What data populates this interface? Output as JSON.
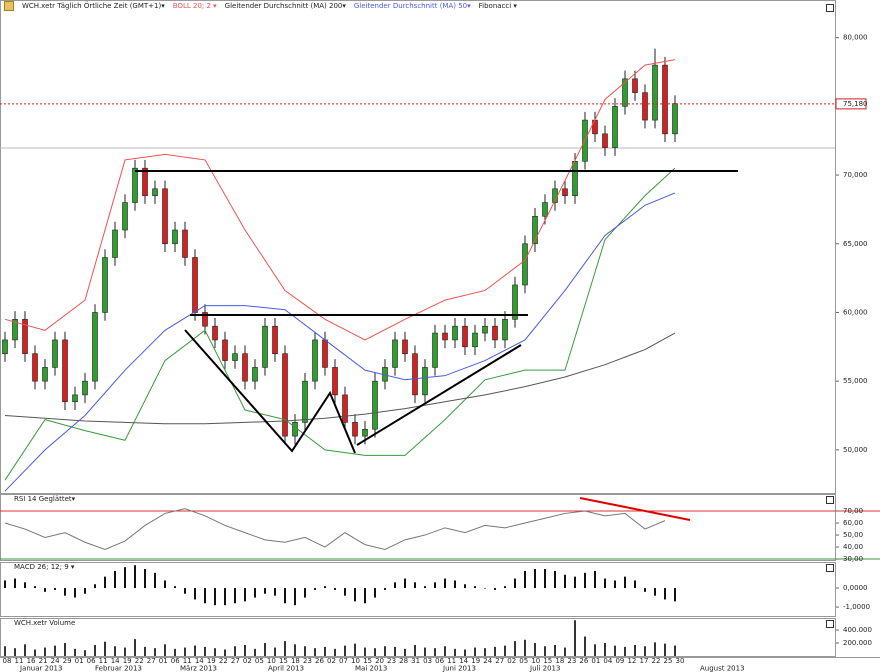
{
  "chart_data": [
    {
      "type": "candlestick",
      "title": "WCH.xetr Täglich Örtliche Zeit (GMT+1)▾",
      "up_color": "#2e9e2e",
      "down_color": "#d42020",
      "open": [
        57,
        58,
        59.5,
        57,
        55,
        56,
        58,
        53.5,
        54,
        55,
        60,
        64,
        66,
        68,
        70.5,
        68.5,
        69,
        65,
        66,
        64,
        60,
        59,
        58,
        56.5,
        57,
        55,
        56,
        59,
        57,
        51,
        52,
        55,
        58,
        56,
        54,
        52,
        51,
        51.5,
        55,
        56,
        58,
        57,
        54,
        56,
        58.5,
        58,
        59,
        57.5,
        58.5,
        59,
        58,
        59.5,
        62,
        65,
        67,
        68,
        69,
        68.5,
        71,
        74,
        73,
        72,
        75,
        77,
        76,
        74,
        78,
        73
      ],
      "high": [
        58.6,
        60.1,
        60.1,
        57.6,
        56.6,
        58.6,
        58.6,
        54.6,
        55.6,
        60.6,
        64.6,
        66.6,
        68.6,
        71.1,
        71.1,
        69.6,
        69.6,
        66.6,
        66.6,
        64.6,
        60.6,
        59.6,
        58.6,
        57.6,
        57.6,
        56.6,
        59.6,
        59.6,
        57.6,
        52.6,
        55.6,
        58.6,
        58.6,
        56.6,
        54.6,
        52.6,
        52.1,
        55.6,
        56.6,
        58.6,
        58.6,
        57.6,
        56.6,
        59.1,
        59.1,
        59.6,
        59.6,
        59.1,
        59.6,
        59.6,
        60.1,
        62.6,
        65.6,
        67.6,
        68.6,
        69.6,
        69.6,
        71.6,
        74.6,
        74.6,
        73.6,
        75.6,
        77.6,
        77.6,
        76.6,
        79.2,
        78.6,
        75.8
      ],
      "low": [
        56.4,
        57.4,
        56.4,
        54.4,
        54.4,
        55.4,
        52.9,
        52.9,
        53.4,
        54.4,
        59.4,
        63.4,
        65.4,
        67.4,
        67.9,
        67.9,
        64.4,
        64.4,
        63.4,
        59.4,
        58.4,
        57.4,
        55.9,
        55.9,
        54.4,
        54.4,
        55.4,
        56.4,
        50.4,
        50.4,
        51.4,
        54.4,
        55.4,
        53.4,
        51.4,
        50.4,
        50.4,
        50.9,
        54.4,
        55.4,
        56.4,
        53.4,
        53.4,
        55.4,
        57.4,
        57.4,
        56.9,
        56.9,
        57.9,
        57.4,
        57.4,
        58.9,
        61.4,
        64.4,
        66.4,
        67.4,
        67.9,
        67.9,
        70.4,
        72.4,
        71.4,
        71.4,
        74.4,
        75.4,
        73.4,
        73.4,
        72.4,
        72.4
      ],
      "close": [
        58,
        59.5,
        57,
        55,
        56,
        58,
        53.5,
        54,
        55,
        60,
        64,
        66,
        68,
        70.5,
        68.5,
        69,
        65,
        66,
        64,
        60,
        59,
        58,
        56.5,
        57,
        55,
        56,
        59,
        57,
        51,
        52,
        55,
        58,
        56,
        54,
        52,
        51,
        51.5,
        55,
        56,
        58,
        57,
        54,
        56,
        58.5,
        58,
        59,
        57.5,
        58.5,
        59,
        58,
        59.5,
        62,
        65,
        67,
        68,
        69,
        68.5,
        71,
        74,
        73,
        72,
        75,
        77,
        76,
        74,
        78,
        73,
        75.2
      ],
      "ylim": [
        46.86,
        82.74
      ],
      "yticks": [
        {
          "value": 50,
          "label": "50,000"
        },
        {
          "value": 55,
          "label": "55,000"
        },
        {
          "value": 60,
          "label": "60,000"
        },
        {
          "value": 65,
          "label": "65,000"
        },
        {
          "value": 70,
          "label": "70,000"
        },
        {
          "value": 80,
          "label": "80,000"
        }
      ],
      "last_price": {
        "value": 75.18,
        "label": "75,180",
        "color": "#d42020"
      },
      "overlays": {
        "x": [
          0,
          4,
          8,
          12,
          16,
          20,
          24,
          28,
          32,
          36,
          40,
          44,
          48,
          52,
          56,
          60,
          64,
          67
        ],
        "series": [
          {
            "name": "BOLL 20; 2 ▾",
            "color": "#f05050",
            "lower_color": "#3a9a3a",
            "upper": [
              59.5,
              58.7,
              60.9,
              71.1,
              71.5,
              71.1,
              66,
              61.6,
              59.5,
              58,
              59.5,
              60.9,
              61.6,
              63.8,
              69.6,
              75.5,
              78,
              78.4
            ],
            "lower": [
              47.8,
              52.2,
              51.4,
              50.7,
              56.5,
              58.7,
              52.9,
              52.2,
              50,
              49.6,
              49.6,
              52.2,
              55.1,
              55.8,
              55.8,
              65.3,
              68.5,
              70.5
            ]
          },
          {
            "name": "Gleitender Durchschnitt (MA) 200▾",
            "color": "#555555",
            "values": [
              52.5,
              52.3,
              52.1,
              52,
              51.9,
              51.9,
              52,
              52.1,
              52.3,
              52.6,
              53,
              53.5,
              54,
              54.6,
              55.3,
              56.2,
              57.3,
              58.5
            ]
          },
          {
            "name": "Gleitender Durchschnitt (MA) 50▾",
            "color": "#4a5ae0",
            "values": [
              47,
              50,
              52.5,
              55.8,
              58.7,
              60.5,
              60.5,
              60.2,
              58,
              55.8,
              55.1,
              55.4,
              56.5,
              58,
              61.6,
              65.6,
              67.8,
              68.7
            ]
          }
        ]
      },
      "tools": [
        "Fibonacci ▾"
      ]
    },
    {
      "type": "line",
      "title": "RSI 14 Geglättet▾",
      "color": "#777777",
      "x": [
        0,
        2,
        4,
        6,
        8,
        10,
        12,
        14,
        16,
        18,
        20,
        22,
        24,
        26,
        28,
        30,
        32,
        34,
        36,
        38,
        40,
        42,
        44,
        46,
        48,
        50,
        52,
        54,
        56,
        58,
        60,
        62,
        64,
        66
      ],
      "values": [
        60,
        55,
        48,
        52,
        44,
        38,
        45,
        58,
        68,
        72,
        66,
        58,
        52,
        46,
        44,
        48,
        40,
        52,
        42,
        38,
        46,
        50,
        56,
        52,
        58,
        56,
        60,
        64,
        68,
        70,
        66,
        68,
        55,
        62
      ],
      "ylim": [
        29.2,
        84.2
      ],
      "yticks": [
        {
          "value": 30,
          "label": "30,00"
        },
        {
          "value": 40,
          "label": "40,00"
        },
        {
          "value": 50,
          "label": "50,00"
        },
        {
          "value": 60,
          "label": "60,00"
        },
        {
          "value": 70,
          "label": "70,00"
        }
      ],
      "levels": [
        {
          "value": 70,
          "color": "#e03030"
        },
        {
          "value": 30,
          "color": "#3a9a3a"
        }
      ]
    },
    {
      "type": "histogram",
      "title": "MACD 26; 12; 9 ▾",
      "color": "#111111",
      "values": [
        0.4,
        0.5,
        0.3,
        0.1,
        -0.2,
        -0.1,
        -0.4,
        -0.5,
        -0.3,
        0.2,
        0.6,
        0.9,
        1.1,
        1.2,
        1.0,
        0.8,
        0.4,
        0.1,
        -0.3,
        -0.6,
        -0.8,
        -0.9,
        -0.9,
        -0.8,
        -0.7,
        -0.5,
        -0.3,
        -0.4,
        -0.8,
        -0.9,
        -0.5,
        -0.1,
        0.1,
        -0.1,
        -0.4,
        -0.7,
        -0.8,
        -0.5,
        -0.1,
        0.3,
        0.5,
        0.3,
        0.1,
        0.3,
        0.5,
        0.4,
        0.2,
        0.1,
        0.0,
        -0.1,
        0.1,
        0.5,
        0.9,
        1.0,
        1.0,
        0.9,
        0.7,
        0.6,
        0.8,
        0.9,
        0.5,
        0.4,
        0.6,
        0.4,
        -0.2,
        -0.4,
        -0.6,
        -0.7
      ],
      "ylim": [
        -1.47,
        1.37
      ],
      "yticks": [
        {
          "value": 0,
          "label": "0,0000"
        },
        {
          "value": -1,
          "label": "-1,0000"
        }
      ]
    },
    {
      "type": "volume",
      "title": "WCH.xetr Volume",
      "color": "#333333",
      "values": [
        150000,
        120000,
        180000,
        100000,
        130000,
        160000,
        200000,
        110000,
        90000,
        170000,
        220000,
        150000,
        130000,
        260000,
        140000,
        120000,
        180000,
        110000,
        130000,
        160000,
        140000,
        120000,
        100000,
        150000,
        170000,
        110000,
        200000,
        130000,
        230000,
        180000,
        150000,
        120000,
        140000,
        110000,
        160000,
        190000,
        130000,
        120000,
        150000,
        140000,
        110000,
        170000,
        130000,
        120000,
        150000,
        110000,
        100000,
        130000,
        120000,
        140000,
        160000,
        230000,
        250000,
        200000,
        150000,
        170000,
        130000,
        550000,
        300000,
        180000,
        200000,
        160000,
        140000,
        170000,
        150000,
        210000,
        190000,
        160000
      ],
      "ylim": [
        0,
        585000
      ],
      "yticks": [
        {
          "value": 200000,
          "label": "200.000"
        },
        {
          "value": 400000,
          "label": "400.000"
        }
      ]
    }
  ],
  "time_axis": {
    "days": [
      "08",
      "11",
      "16",
      "21",
      "24",
      "29",
      "01",
      "06",
      "11",
      "14",
      "19",
      "22",
      "27",
      "01",
      "06",
      "11",
      "14",
      "19",
      "22",
      "27",
      "02",
      "05",
      "10",
      "15",
      "18",
      "23",
      "26",
      "02",
      "07",
      "10",
      "15",
      "20",
      "23",
      "28",
      "31",
      "03",
      "06",
      "11",
      "14",
      "19",
      "24",
      "27",
      "02",
      "05",
      "10",
      "15",
      "18",
      "23",
      "26",
      "01",
      "04",
      "09",
      "12",
      "17",
      "22",
      "25",
      "30"
    ],
    "months": [
      "Januar 2013",
      "Februar 2013",
      "März 2013",
      "April 2013",
      "Mai 2013",
      "Juni 2013",
      "Juli 2013",
      "August 2013"
    ]
  }
}
